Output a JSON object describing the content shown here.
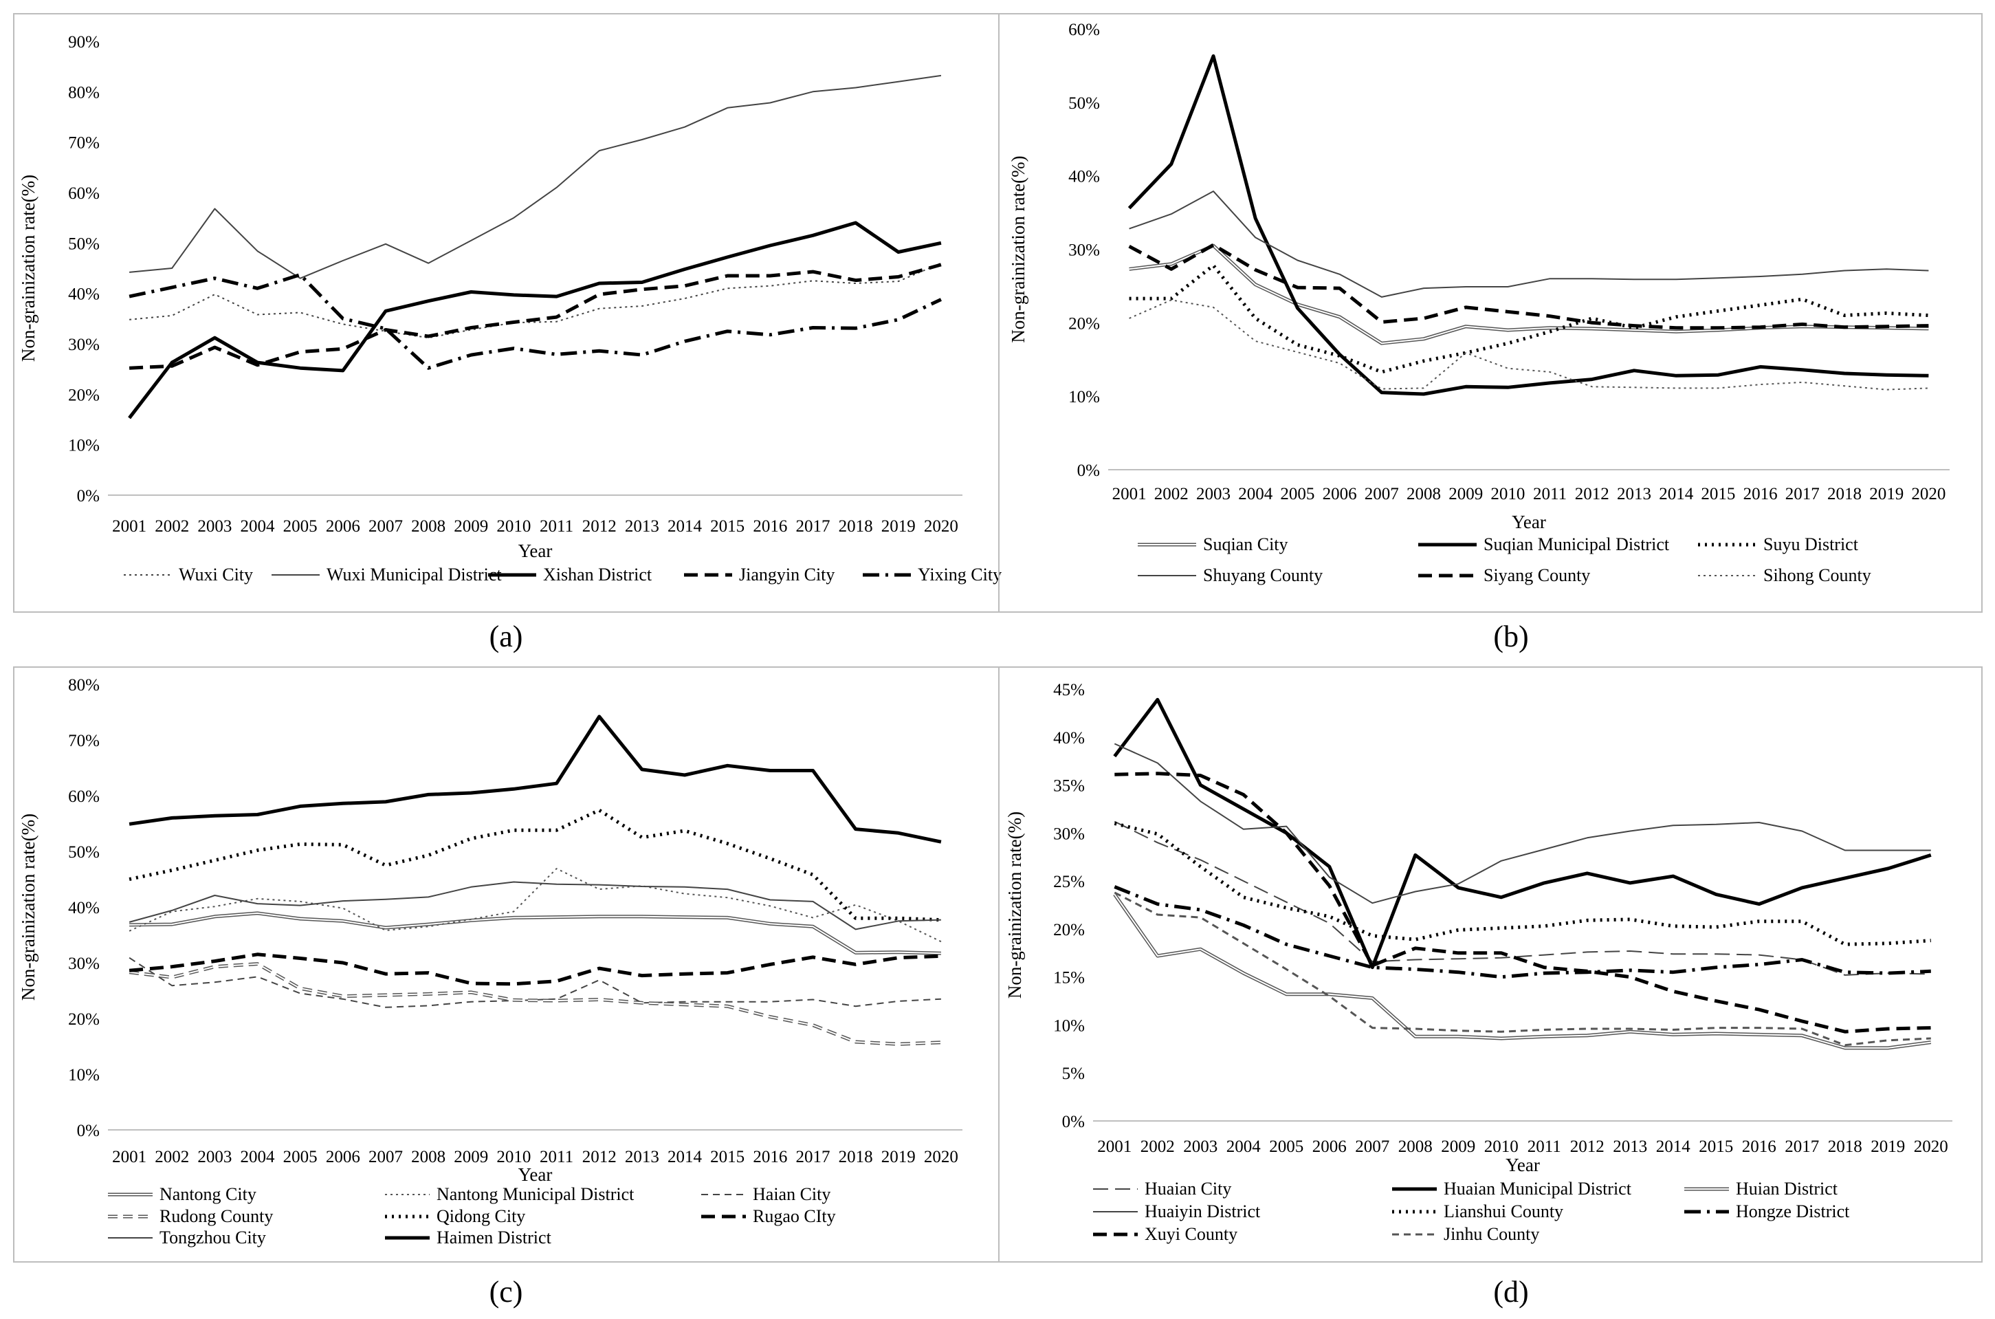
{
  "figure": {
    "captions": [
      "(a)",
      "(b)",
      "(c)",
      "(d)"
    ]
  },
  "chart_data": [
    {
      "id": "a",
      "type": "line",
      "caption": "(a)",
      "xlabel": "Year",
      "ylabel": "Non-grainization rate(%)",
      "ylim": [
        0,
        90
      ],
      "yticks": [
        0,
        10,
        20,
        30,
        40,
        50,
        60,
        70,
        80,
        90
      ],
      "ytick_labels": [
        "0%",
        "10%",
        "20%",
        "30%",
        "40%",
        "50%",
        "60%",
        "70%",
        "80%",
        "90%"
      ],
      "categories": [
        "2001",
        "2002",
        "2003",
        "2004",
        "2005",
        "2006",
        "2007",
        "2008",
        "2009",
        "2010",
        "2011",
        "2012",
        "2013",
        "2014",
        "2015",
        "2016",
        "2017",
        "2018",
        "2019",
        "2020"
      ],
      "grid": false,
      "legend_position": "bottom",
      "series": [
        {
          "name": "Wuxi City",
          "style": "dotted",
          "color": "#444444",
          "width": 2,
          "values": [
            34.8,
            35.6,
            39.8,
            35.8,
            36.2,
            33.9,
            32.5,
            31.2,
            32.8,
            34.2,
            34.4,
            37.0,
            37.5,
            39.0,
            41.0,
            41.5,
            42.5,
            42.0,
            42.4,
            46.0
          ]
        },
        {
          "name": "Wuxi Municipal District",
          "style": "solid",
          "color": "#444444",
          "width": 2,
          "values": [
            44.2,
            45.0,
            56.8,
            48.4,
            43.0,
            46.5,
            49.8,
            46.0,
            50.5,
            55.0,
            61.0,
            68.3,
            70.5,
            73.0,
            76.8,
            77.8,
            80.0,
            80.8,
            82.0,
            83.2
          ]
        },
        {
          "name": "Xishan District",
          "style": "solid",
          "color": "#000000",
          "width": 5,
          "values": [
            15.3,
            26.3,
            31.2,
            26.3,
            25.2,
            24.7,
            36.5,
            38.5,
            40.3,
            39.7,
            39.4,
            42.0,
            42.2,
            44.8,
            47.2,
            49.5,
            51.5,
            54.0,
            48.2,
            50.0
          ]
        },
        {
          "name": "Jiangyin City",
          "style": "dashed",
          "color": "#000000",
          "width": 5,
          "values": [
            25.2,
            25.6,
            29.3,
            25.8,
            28.4,
            29.0,
            32.8,
            31.5,
            33.2,
            34.3,
            35.3,
            39.8,
            40.8,
            41.5,
            43.5,
            43.5,
            44.3,
            42.6,
            43.3,
            45.7
          ]
        },
        {
          "name": "Yixing City",
          "style": "dashdot",
          "color": "#000000",
          "width": 5,
          "values": [
            39.4,
            41.2,
            43.0,
            41.0,
            43.7,
            35.0,
            33.0,
            25.2,
            27.8,
            29.1,
            27.9,
            28.6,
            27.8,
            30.5,
            32.5,
            31.8,
            33.2,
            33.1,
            34.8,
            38.8
          ]
        }
      ]
    },
    {
      "id": "b",
      "type": "line",
      "caption": "(b)",
      "xlabel": "Year",
      "ylabel": "Non-grainization rate(%)",
      "ylim": [
        0,
        60
      ],
      "yticks": [
        0,
        10,
        20,
        30,
        40,
        50,
        60
      ],
      "ytick_labels": [
        "0%",
        "10%",
        "20%",
        "30%",
        "40%",
        "50%",
        "60%"
      ],
      "categories": [
        "2001",
        "2002",
        "2003",
        "2004",
        "2005",
        "2006",
        "2007",
        "2008",
        "2009",
        "2010",
        "2011",
        "2012",
        "2013",
        "2014",
        "2015",
        "2016",
        "2017",
        "2018",
        "2019",
        "2020"
      ],
      "grid": false,
      "legend_position": "bottom",
      "series": [
        {
          "name": "Suqian City",
          "style": "double",
          "color": "#555555",
          "width": 5,
          "values": [
            27.3,
            28.0,
            30.5,
            25.2,
            22.5,
            20.8,
            17.2,
            17.8,
            19.5,
            19.0,
            19.3,
            19.2,
            19.0,
            18.8,
            19.0,
            19.3,
            19.5,
            19.4,
            19.3,
            19.2
          ]
        },
        {
          "name": "Suqian Municipal District",
          "style": "solid",
          "color": "#000000",
          "width": 5,
          "values": [
            35.6,
            41.6,
            56.3,
            34.2,
            22.0,
            15.7,
            10.5,
            10.3,
            11.3,
            11.2,
            11.8,
            12.3,
            13.5,
            12.8,
            12.9,
            14.0,
            13.6,
            13.1,
            12.9,
            12.8
          ]
        },
        {
          "name": "Suyu District",
          "style": "dotted",
          "color": "#000000",
          "width": 5,
          "values": [
            23.3,
            23.3,
            27.8,
            20.6,
            17.0,
            15.5,
            13.3,
            14.8,
            15.9,
            17.2,
            18.8,
            20.6,
            19.3,
            20.8,
            21.6,
            22.4,
            23.2,
            21.0,
            21.3,
            21.0
          ]
        },
        {
          "name": "Shuyang County",
          "style": "solid",
          "color": "#444444",
          "width": 2,
          "values": [
            32.8,
            34.8,
            37.9,
            31.6,
            28.5,
            26.6,
            23.5,
            24.7,
            24.9,
            24.9,
            26.0,
            26.0,
            25.9,
            25.9,
            26.1,
            26.3,
            26.6,
            27.1,
            27.3,
            27.1
          ]
        },
        {
          "name": "Siyang County",
          "style": "dashed",
          "color": "#000000",
          "width": 5,
          "values": [
            30.4,
            27.3,
            30.6,
            27.2,
            24.8,
            24.7,
            20.1,
            20.6,
            22.1,
            21.5,
            20.9,
            20.0,
            19.6,
            19.3,
            19.3,
            19.4,
            19.8,
            19.4,
            19.5,
            19.6
          ]
        },
        {
          "name": "Sihong County",
          "style": "dotted",
          "color": "#555555",
          "width": 2,
          "values": [
            20.6,
            23.1,
            22.1,
            17.5,
            16.0,
            14.5,
            11.0,
            11.1,
            15.9,
            13.8,
            13.3,
            11.3,
            11.2,
            11.1,
            11.1,
            11.6,
            11.9,
            11.4,
            10.9,
            11.1
          ]
        }
      ]
    },
    {
      "id": "c",
      "type": "line",
      "caption": "(c)",
      "xlabel": "Year",
      "ylabel": "Non-grainization rate(%)",
      "ylim": [
        0,
        80
      ],
      "yticks": [
        0,
        10,
        20,
        30,
        40,
        50,
        60,
        70,
        80
      ],
      "ytick_labels": [
        "0%",
        "10%",
        "20%",
        "30%",
        "40%",
        "50%",
        "60%",
        "70%",
        "80%"
      ],
      "categories": [
        "2001",
        "2002",
        "2003",
        "2004",
        "2005",
        "2006",
        "2007",
        "2008",
        "2009",
        "2010",
        "2011",
        "2012",
        "2013",
        "2014",
        "2015",
        "2016",
        "2017",
        "2018",
        "2019",
        "2020"
      ],
      "grid": false,
      "legend_position": "bottom",
      "series": [
        {
          "name": "Nantong City",
          "style": "double",
          "color": "#555555",
          "width": 5,
          "values": [
            36.8,
            36.9,
            38.3,
            38.9,
            37.9,
            37.5,
            36.3,
            36.9,
            37.6,
            38.1,
            38.2,
            38.3,
            38.3,
            38.2,
            38.1,
            37.0,
            36.5,
            31.8,
            31.9,
            31.7
          ]
        },
        {
          "name": "Nantong Municipal District",
          "style": "dotted",
          "color": "#555555",
          "width": 2,
          "values": [
            35.7,
            39.2,
            40.1,
            41.5,
            41.0,
            39.8,
            35.8,
            36.5,
            37.8,
            39.2,
            46.9,
            43.2,
            43.8,
            42.4,
            41.7,
            40.2,
            38.1,
            40.4,
            37.5,
            33.8
          ]
        },
        {
          "name": "Haian City",
          "style": "dashed",
          "color": "#444444",
          "width": 2,
          "values": [
            30.9,
            25.9,
            26.5,
            27.5,
            24.5,
            23.5,
            22.0,
            22.3,
            23.0,
            23.2,
            23.5,
            26.9,
            22.8,
            23.0,
            23.0,
            23.0,
            23.4,
            22.2,
            23.1,
            23.5
          ]
        },
        {
          "name": "Rudong County",
          "style": "doubledash",
          "color": "#555555",
          "width": 5,
          "values": [
            28.3,
            27.4,
            29.3,
            29.8,
            25.4,
            24.0,
            24.2,
            24.4,
            24.7,
            23.3,
            23.2,
            23.4,
            22.8,
            22.5,
            22.2,
            20.3,
            18.8,
            15.8,
            15.4,
            15.7
          ]
        },
        {
          "name": "Qidong City",
          "style": "dotted",
          "color": "#000000",
          "width": 5,
          "values": [
            45.0,
            46.6,
            48.4,
            50.2,
            51.3,
            51.2,
            47.5,
            49.3,
            52.3,
            53.8,
            53.8,
            57.4,
            52.5,
            53.7,
            51.4,
            48.7,
            45.8,
            38.0,
            38.0,
            37.7
          ]
        },
        {
          "name": "Rugao CIty",
          "style": "dashed",
          "color": "#000000",
          "width": 5,
          "values": [
            28.6,
            29.3,
            30.3,
            31.5,
            30.8,
            30.0,
            28.0,
            28.2,
            26.3,
            26.2,
            26.7,
            29.0,
            27.7,
            28.0,
            28.2,
            29.7,
            31.0,
            29.7,
            30.9,
            31.2
          ]
        },
        {
          "name": "Tongzhou City",
          "style": "solid",
          "color": "#444444",
          "width": 2,
          "values": [
            37.3,
            39.4,
            42.1,
            40.6,
            40.3,
            41.1,
            41.4,
            41.8,
            43.6,
            44.5,
            44.1,
            44.0,
            43.7,
            43.6,
            43.2,
            41.3,
            41.0,
            36.0,
            37.5,
            37.7
          ]
        },
        {
          "name": "Haimen District",
          "style": "solid",
          "color": "#000000",
          "width": 5,
          "values": [
            54.9,
            56.0,
            56.4,
            56.6,
            58.1,
            58.6,
            58.9,
            60.2,
            60.5,
            61.2,
            62.2,
            74.2,
            64.7,
            63.7,
            65.4,
            64.5,
            64.5,
            54.0,
            53.3,
            51.7
          ]
        }
      ]
    },
    {
      "id": "d",
      "type": "line",
      "caption": "(d)",
      "xlabel": "Year",
      "ylabel": "Non-grainization rate(%)",
      "ylim": [
        0,
        45
      ],
      "yticks": [
        0,
        5,
        10,
        15,
        20,
        25,
        30,
        35,
        40,
        45
      ],
      "ytick_labels": [
        "0%",
        "5%",
        "10%",
        "15%",
        "20%",
        "25%",
        "30%",
        "35%",
        "40%",
        "45%"
      ],
      "categories": [
        "2001",
        "2002",
        "2003",
        "2004",
        "2005",
        "2006",
        "2007",
        "2008",
        "2009",
        "2010",
        "2011",
        "2012",
        "2013",
        "2014",
        "2015",
        "2016",
        "2017",
        "2018",
        "2019",
        "2020"
      ],
      "grid": false,
      "legend_position": "bottom",
      "series": [
        {
          "name": "Huaian City",
          "style": "longdash",
          "color": "#444444",
          "width": 2,
          "values": [
            31.2,
            29.0,
            27.2,
            25.0,
            22.8,
            20.6,
            16.6,
            16.8,
            16.9,
            17.0,
            17.3,
            17.6,
            17.7,
            17.4,
            17.4,
            17.3,
            16.8,
            15.2,
            15.4,
            15.3
          ]
        },
        {
          "name": "Huaian Municipal District",
          "style": "solid",
          "color": "#000000",
          "width": 5,
          "values": [
            38.0,
            43.9,
            35.0,
            32.5,
            30.0,
            26.5,
            16.0,
            27.7,
            24.3,
            23.3,
            24.8,
            25.8,
            24.8,
            25.5,
            23.6,
            22.6,
            24.3,
            25.3,
            26.3,
            27.7
          ]
        },
        {
          "name": "Huian District",
          "style": "double",
          "color": "#555555",
          "width": 5,
          "values": [
            23.6,
            17.2,
            17.9,
            15.4,
            13.2,
            13.2,
            12.8,
            8.8,
            8.8,
            8.6,
            8.8,
            8.9,
            9.3,
            9.0,
            9.1,
            9.0,
            8.9,
            7.6,
            7.6,
            8.2
          ]
        },
        {
          "name": "Huaiyin District",
          "style": "solid",
          "color": "#444444",
          "width": 2,
          "values": [
            39.3,
            37.3,
            33.3,
            30.4,
            30.7,
            25.4,
            22.7,
            23.9,
            24.7,
            27.1,
            28.3,
            29.5,
            30.2,
            30.8,
            30.9,
            31.1,
            30.2,
            28.2,
            28.2,
            28.2
          ]
        },
        {
          "name": "Lianshui County",
          "style": "dotted",
          "color": "#000000",
          "width": 5,
          "values": [
            31.0,
            29.9,
            26.5,
            23.3,
            22.2,
            21.3,
            19.3,
            18.9,
            19.9,
            20.1,
            20.3,
            20.9,
            21.0,
            20.3,
            20.2,
            20.8,
            20.8,
            18.4,
            18.5,
            18.8
          ]
        },
        {
          "name": "Hongze District",
          "style": "dashdot",
          "color": "#000000",
          "width": 5,
          "values": [
            24.4,
            22.6,
            22.0,
            20.4,
            18.4,
            17.2,
            16.0,
            15.8,
            15.5,
            15.0,
            15.4,
            15.5,
            15.7,
            15.5,
            16.0,
            16.3,
            16.8,
            15.5,
            15.4,
            15.6
          ]
        },
        {
          "name": "Xuyi County",
          "style": "dashed",
          "color": "#000000",
          "width": 5,
          "values": [
            36.1,
            36.2,
            36.0,
            34.0,
            30.0,
            24.5,
            16.2,
            18.0,
            17.5,
            17.5,
            16.0,
            15.6,
            15.0,
            13.5,
            12.5,
            11.6,
            10.4,
            9.3,
            9.6,
            9.7
          ]
        },
        {
          "name": "Jinhu County",
          "style": "dashed",
          "color": "#555555",
          "width": 3,
          "values": [
            23.8,
            21.5,
            21.2,
            18.5,
            15.8,
            13.0,
            9.7,
            9.6,
            9.4,
            9.3,
            9.5,
            9.6,
            9.6,
            9.5,
            9.7,
            9.7,
            9.6,
            7.9,
            8.4,
            8.6
          ]
        }
      ]
    }
  ]
}
